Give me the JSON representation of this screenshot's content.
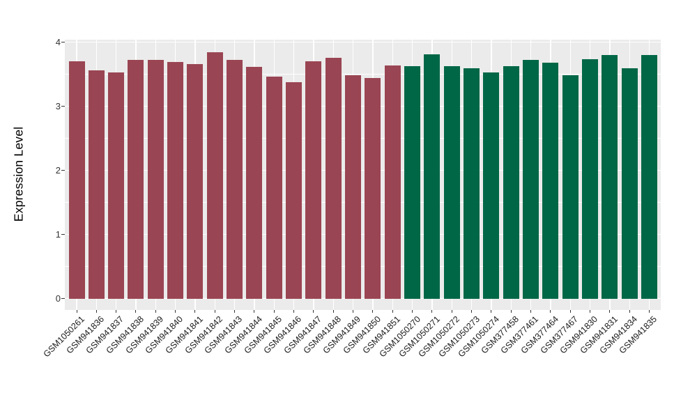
{
  "chart_data": {
    "type": "bar",
    "title": "",
    "xlabel": "",
    "ylabel": "Expression Level",
    "ylim": [
      0,
      4
    ],
    "yticks": [
      0,
      1,
      2,
      3,
      4
    ],
    "grid": "white major and minor horizontal gridlines plus vertical gridlines at category centers on gray panel",
    "legend_position": "none",
    "categories": [
      "GSM1050261",
      "GSM941836",
      "GSM941837",
      "GSM941838",
      "GSM941839",
      "GSM941840",
      "GSM941841",
      "GSM941842",
      "GSM941843",
      "GSM941844",
      "GSM941845",
      "GSM941846",
      "GSM941847",
      "GSM941848",
      "GSM941849",
      "GSM941850",
      "GSM941851",
      "GSM1050270",
      "GSM1050271",
      "GSM1050272",
      "GSM1050273",
      "GSM1050274",
      "GSM377458",
      "GSM377461",
      "GSM377464",
      "GSM377467",
      "GSM941830",
      "GSM941831",
      "GSM941834",
      "GSM941835"
    ],
    "values": [
      3.7,
      3.56,
      3.53,
      3.73,
      3.72,
      3.69,
      3.66,
      3.84,
      3.72,
      3.62,
      3.46,
      3.38,
      3.7,
      3.76,
      3.49,
      3.44,
      3.64,
      3.63,
      3.81,
      3.63,
      3.6,
      3.53,
      3.63,
      3.73,
      3.68,
      3.49,
      3.74,
      3.8,
      3.6,
      3.8
    ],
    "bar_groups": [
      {
        "name": "group-1",
        "color": "#9A4553",
        "start_index": 0,
        "end_index": 16
      },
      {
        "name": "group-2",
        "color": "#006746",
        "start_index": 17,
        "end_index": 29
      }
    ]
  },
  "colors": {
    "panel_background": "#EBEBEB",
    "gridline": "#FFFFFF",
    "tick_mark": "#333333",
    "axis_text": "#333333",
    "x_axis_text": "#1a1a1a",
    "axis_title": "#000000",
    "figure_background": "#FFFFFF"
  }
}
